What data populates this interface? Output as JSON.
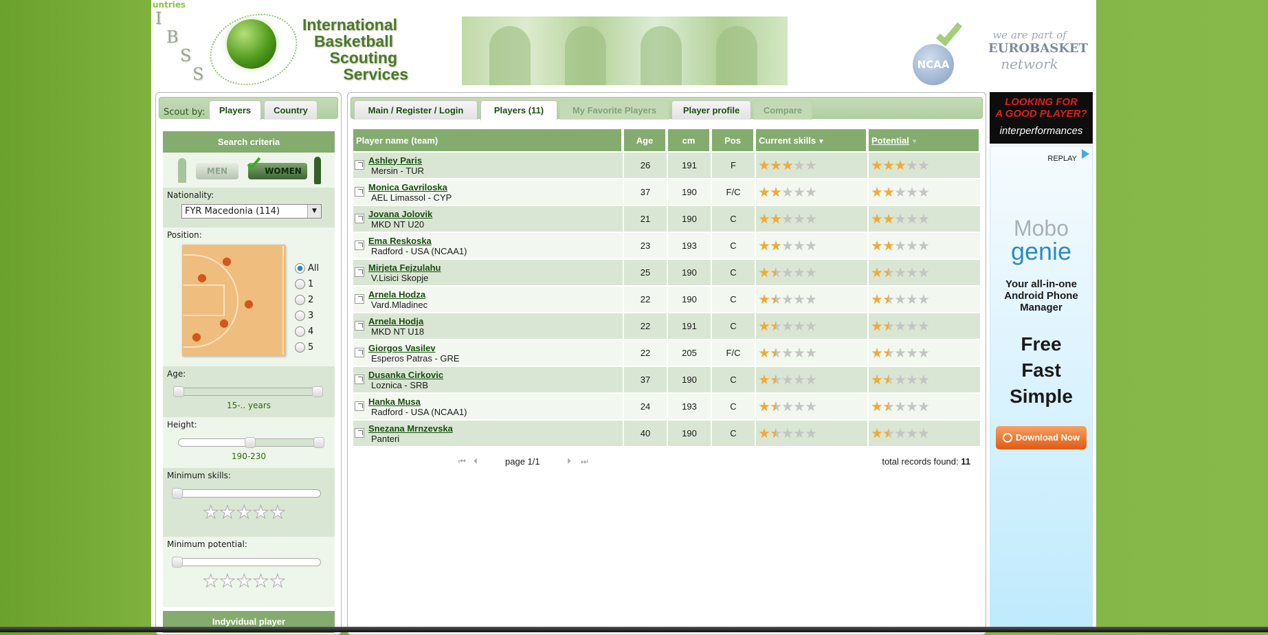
{
  "top_link": "untries",
  "banner": {
    "letters": [
      "I",
      "B",
      "S",
      "S"
    ],
    "title_lines": [
      "International",
      "Basketball",
      "Scouting",
      "Services"
    ],
    "ncaa": "NCAA",
    "network": [
      "we are part of",
      "EUROBASKET",
      "network"
    ]
  },
  "left": {
    "scout_by": "Scout by:",
    "tabs": [
      {
        "label": "Players",
        "active": true
      },
      {
        "label": "Country",
        "active": false
      }
    ],
    "search_criteria": "Search criteria",
    "gender": {
      "men": "MEN",
      "women": "WOMEN",
      "selected": "WOMEN"
    },
    "nationality_label": "Nationality:",
    "nationality_value": "FYR Macedonia (114)",
    "position_label": "Position:",
    "positions": [
      "All",
      "1",
      "2",
      "3",
      "4",
      "5"
    ],
    "position_selected": "All",
    "age_label": "Age:",
    "age_value": "15-.. years",
    "height_label": "Height:",
    "height_value": "190-230",
    "min_skills_label": "Minimum skills:",
    "min_skills": 0,
    "min_potential_label": "Minimum potential:",
    "min_potential": 0,
    "individual_player": "Indyvidual player"
  },
  "main": {
    "tabs": [
      {
        "label": "Main / Register / Login",
        "state": "normal"
      },
      {
        "label": "Players (11)",
        "state": "active"
      },
      {
        "label": "My Favorite Players",
        "state": "disabled"
      },
      {
        "label": "Player profile",
        "state": "normal"
      },
      {
        "label": "Compare",
        "state": "disabled"
      }
    ],
    "columns": {
      "name": "Player name (team)",
      "age": "Age",
      "cm": "cm",
      "pos": "Pos",
      "skills": "Current skills",
      "potential": "Potential"
    },
    "players": [
      {
        "name": "Ashley Paris",
        "team": "Mersin - TUR",
        "age": "26",
        "cm": "191",
        "pos": "F",
        "skills": 3,
        "potential": 3
      },
      {
        "name": "Monica Gavriloska",
        "team": "AEL Limassol - CYP",
        "age": "37",
        "cm": "190",
        "pos": "F/C",
        "skills": 2,
        "potential": 2
      },
      {
        "name": "Jovana Jolovik",
        "team": "MKD NT U20",
        "age": "21",
        "cm": "190",
        "pos": "C",
        "skills": 2,
        "potential": 2
      },
      {
        "name": "Ema Reskoska",
        "team": "Radford - USA (NCAA1)",
        "age": "23",
        "cm": "193",
        "pos": "C",
        "skills": 2,
        "potential": 2
      },
      {
        "name": "Mirjeta Fejzulahu",
        "team": "V.Lisici Skopje",
        "age": "25",
        "cm": "190",
        "pos": "C",
        "skills": 1.5,
        "potential": 1.5
      },
      {
        "name": "Arnela Hodza",
        "team": "Vard.Mladinec",
        "age": "22",
        "cm": "190",
        "pos": "C",
        "skills": 1.5,
        "potential": 1.5
      },
      {
        "name": "Arnela Hodja",
        "team": "MKD NT U18",
        "age": "22",
        "cm": "191",
        "pos": "C",
        "skills": 1.5,
        "potential": 1.5
      },
      {
        "name": "Giorgos Vasilev",
        "team": "Esperos Patras - GRE",
        "age": "22",
        "cm": "205",
        "pos": "F/C",
        "skills": 1.5,
        "potential": 1.5
      },
      {
        "name": "Dusanka Cirkovic",
        "team": "Loznica - SRB",
        "age": "37",
        "cm": "190",
        "pos": "C",
        "skills": 1.5,
        "potential": 1.5
      },
      {
        "name": "Hanka Musa",
        "team": "Radford - USA (NCAA1)",
        "age": "24",
        "cm": "193",
        "pos": "C",
        "skills": 1.5,
        "potential": 1.5
      },
      {
        "name": "Snezana Mrnzevska",
        "team": "Panteri",
        "age": "40",
        "cm": "190",
        "pos": "C",
        "skills": 1.5,
        "potential": 1.5
      }
    ],
    "pager": {
      "page": "page 1/1",
      "total_label": "total records found:",
      "total": "11"
    }
  },
  "ads": {
    "ad1": {
      "line1": "LOOKING FOR",
      "line2": "A GOOD PLAYER?",
      "brand": "interperformances"
    },
    "ad2": {
      "replay": "REPLAY",
      "brand_top": "Mobo",
      "brand_bottom": "genie",
      "tagline": [
        "Your all-in-one",
        "Android Phone",
        "Manager"
      ],
      "slogan": [
        "Free",
        "Fast",
        "Simple"
      ],
      "cta": "Download Now"
    }
  },
  "colors": {
    "accent": "#84ac6e",
    "link": "#184e10",
    "star": "#f0a93a",
    "bg": "#7fb23e"
  }
}
